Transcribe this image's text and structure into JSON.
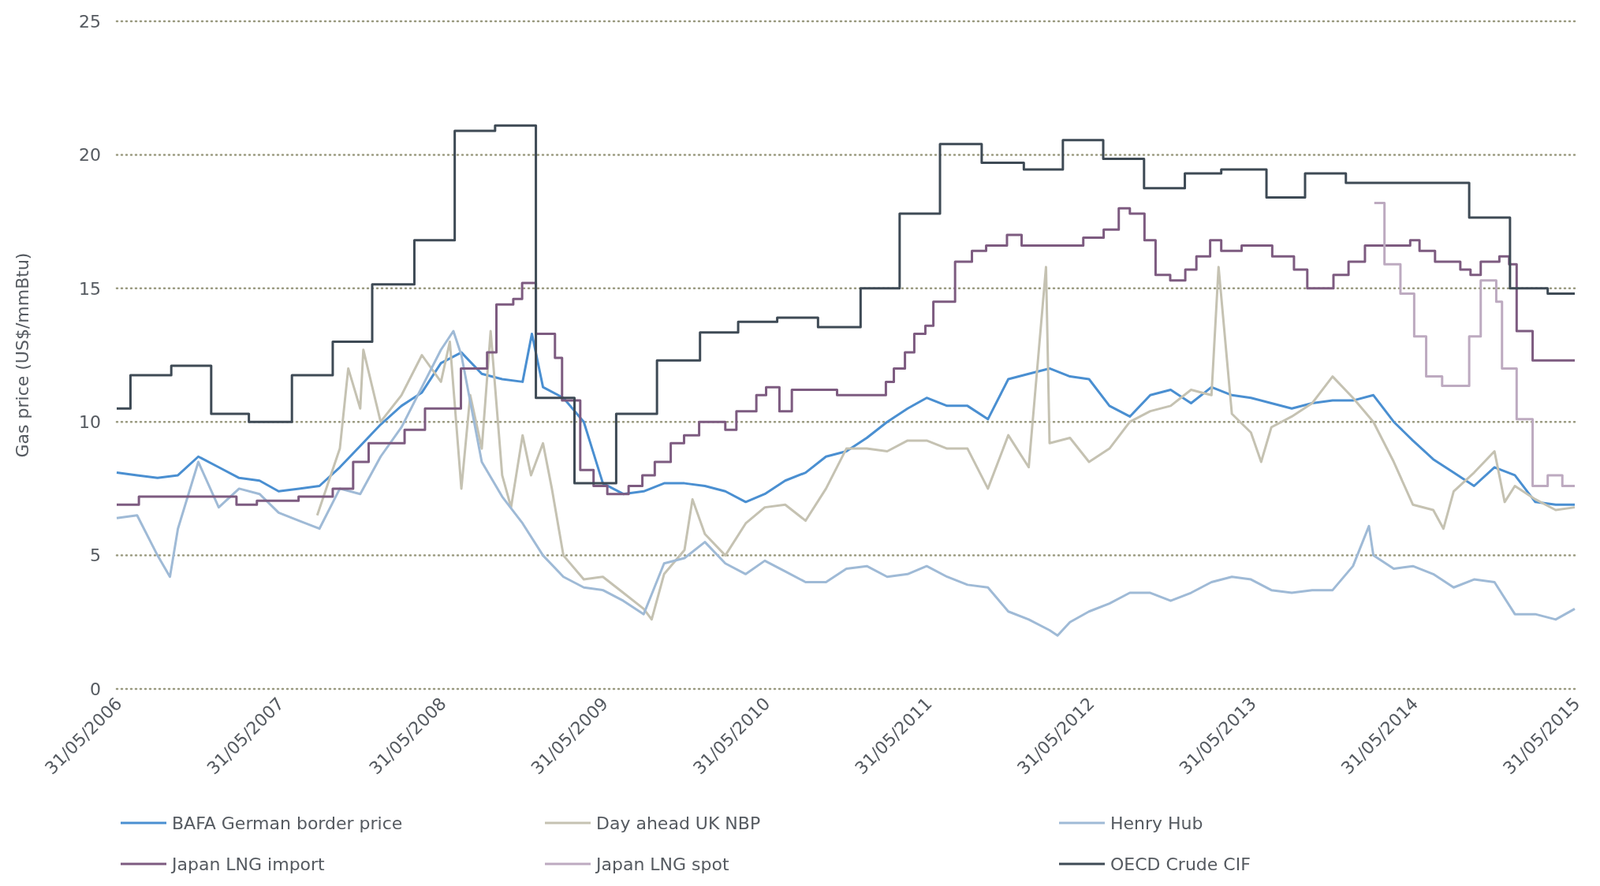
{
  "chart_data": {
    "type": "line",
    "ylabel": "Gas price (US$/mmBtu)",
    "xlim": [
      "2006-05-31",
      "2015-05-31"
    ],
    "xticks": [
      {
        "value": "2006-05-31",
        "label": "31/05/2006"
      },
      {
        "value": "2007-05-31",
        "label": "31/05/2007"
      },
      {
        "value": "2008-05-31",
        "label": "31/05/2008"
      },
      {
        "value": "2009-05-31",
        "label": "31/05/2009"
      },
      {
        "value": "2010-05-31",
        "label": "31/05/2010"
      },
      {
        "value": "2011-05-31",
        "label": "31/05/2011"
      },
      {
        "value": "2012-05-31",
        "label": "31/05/2012"
      },
      {
        "value": "2013-05-31",
        "label": "31/05/2013"
      },
      {
        "value": "2014-05-31",
        "label": "31/05/2014"
      },
      {
        "value": "2015-05-31",
        "label": "31/05/2015"
      }
    ],
    "ylim": [
      0,
      25
    ],
    "yticks": [
      0,
      5,
      10,
      15,
      20,
      25
    ],
    "grid": "y",
    "legend": "bottom",
    "line_style": "solid",
    "series": [
      {
        "name": "BAFA German border price",
        "color": "#4a8fd1",
        "type": "line",
        "x": [
          "2006-05-31",
          "2006-07-16",
          "2006-08-31",
          "2006-10-16",
          "2006-12-01",
          "2007-01-16",
          "2007-03-03",
          "2007-04-18",
          "2007-05-31",
          "2007-07-16",
          "2007-08-31",
          "2007-10-16",
          "2007-12-01",
          "2008-01-16",
          "2008-03-03",
          "2008-04-18",
          "2008-05-31",
          "2008-07-16",
          "2008-08-31",
          "2008-10-16",
          "2008-12-01",
          "2008-12-22",
          "2009-01-16",
          "2009-03-03",
          "2009-04-18",
          "2009-05-31",
          "2009-07-16",
          "2009-08-31",
          "2009-10-16",
          "2009-12-01",
          "2010-01-16",
          "2010-03-03",
          "2010-04-18",
          "2010-05-31",
          "2010-07-16",
          "2010-08-31",
          "2010-10-16",
          "2010-12-01",
          "2011-01-16",
          "2011-03-03",
          "2011-04-18",
          "2011-05-31",
          "2011-07-16",
          "2011-08-31",
          "2011-10-16",
          "2011-12-01",
          "2012-01-16",
          "2012-03-03",
          "2012-04-18",
          "2012-05-31",
          "2012-07-16",
          "2012-08-31",
          "2012-10-16",
          "2012-12-01",
          "2013-01-16",
          "2013-03-03",
          "2013-04-18",
          "2013-05-31",
          "2013-07-16",
          "2013-08-31",
          "2013-10-16",
          "2013-12-01",
          "2014-01-16",
          "2014-03-03",
          "2014-04-18",
          "2014-05-31",
          "2014-07-16",
          "2014-08-31",
          "2014-10-16",
          "2014-12-01",
          "2015-01-16",
          "2015-03-03",
          "2015-04-18",
          "2015-05-31"
        ],
        "values": [
          8.1,
          8.0,
          7.9,
          8.0,
          8.7,
          8.3,
          7.9,
          7.8,
          7.4,
          7.5,
          7.6,
          8.3,
          9.1,
          9.9,
          10.6,
          11.1,
          12.2,
          12.6,
          11.8,
          11.6,
          11.5,
          13.3,
          11.3,
          10.9,
          10.0,
          7.7,
          7.3,
          7.4,
          7.7,
          7.7,
          7.6,
          7.4,
          7.0,
          7.3,
          7.8,
          8.1,
          8.7,
          8.9,
          9.4,
          10.0,
          10.5,
          10.9,
          10.6,
          10.6,
          10.1,
          11.6,
          11.8,
          12.0,
          11.7,
          11.6,
          10.6,
          10.2,
          11.0,
          11.2,
          10.7,
          11.3,
          11.0,
          10.9,
          10.7,
          10.5,
          10.7,
          10.8,
          10.8,
          11.0,
          10.0,
          9.3,
          8.6,
          8.1,
          7.6,
          8.3,
          8.0,
          7.0,
          6.9,
          6.9
        ]
      },
      {
        "name": "Day ahead UK NBP",
        "color": "#c5c2b2",
        "type": "line",
        "x": [
          "2007-08-26",
          "2007-10-16",
          "2007-11-04",
          "2007-12-01",
          "2007-12-08",
          "2008-01-16",
          "2008-03-03",
          "2008-04-18",
          "2008-05-31",
          "2008-06-20",
          "2008-07-16",
          "2008-08-05",
          "2008-08-31",
          "2008-09-20",
          "2008-10-16",
          "2008-11-05",
          "2008-12-01",
          "2008-12-20",
          "2009-01-16",
          "2009-02-05",
          "2009-03-03",
          "2009-04-18",
          "2009-05-31",
          "2009-07-16",
          "2009-08-31",
          "2009-09-18",
          "2009-10-16",
          "2009-12-01",
          "2009-12-19",
          "2010-01-16",
          "2010-03-03",
          "2010-04-18",
          "2010-05-31",
          "2010-07-16",
          "2010-08-31",
          "2010-10-16",
          "2010-12-01",
          "2011-01-16",
          "2011-03-03",
          "2011-04-18",
          "2011-05-31",
          "2011-07-16",
          "2011-08-31",
          "2011-10-16",
          "2011-12-01",
          "2012-01-16",
          "2012-02-24",
          "2012-03-03",
          "2012-04-18",
          "2012-05-31",
          "2012-07-16",
          "2012-08-31",
          "2012-10-16",
          "2012-12-01",
          "2013-01-16",
          "2013-03-03",
          "2013-03-19",
          "2013-04-18",
          "2013-05-31",
          "2013-06-23",
          "2013-07-16",
          "2013-08-31",
          "2013-10-16",
          "2013-12-01",
          "2014-01-16",
          "2014-03-03",
          "2014-04-18",
          "2014-05-31",
          "2014-07-16",
          "2014-08-08",
          "2014-08-31",
          "2014-10-16",
          "2014-12-01",
          "2014-12-24",
          "2015-01-16",
          "2015-03-03",
          "2015-04-18",
          "2015-05-31"
        ],
        "values": [
          6.5,
          9.0,
          12.0,
          10.5,
          12.7,
          10.0,
          11.0,
          12.5,
          11.5,
          13.0,
          7.5,
          11.0,
          9.0,
          13.4,
          8.0,
          6.8,
          9.5,
          8.0,
          9.2,
          7.5,
          5.0,
          4.1,
          4.2,
          3.6,
          3.0,
          2.6,
          4.3,
          5.2,
          7.1,
          5.8,
          5.0,
          6.2,
          6.8,
          6.9,
          6.3,
          7.5,
          9.0,
          9.0,
          8.9,
          9.3,
          9.3,
          9.0,
          9.0,
          7.5,
          9.5,
          8.3,
          15.8,
          9.2,
          9.4,
          8.5,
          9.0,
          10.0,
          10.4,
          10.6,
          11.2,
          11.0,
          15.8,
          10.3,
          9.6,
          8.5,
          9.8,
          10.2,
          10.7,
          11.7,
          10.9,
          10.0,
          8.5,
          6.9,
          6.7,
          6.0,
          7.4,
          8.1,
          8.9,
          7.0,
          7.6,
          7.1,
          6.7,
          6.8
        ]
      },
      {
        "name": "Henry Hub",
        "color": "#9fbad6",
        "type": "line",
        "x": [
          "2006-05-31",
          "2006-07-16",
          "2006-08-31",
          "2006-09-28",
          "2006-10-16",
          "2006-12-01",
          "2007-01-16",
          "2007-03-03",
          "2007-04-18",
          "2007-05-31",
          "2007-07-16",
          "2007-08-31",
          "2007-10-16",
          "2007-12-01",
          "2008-01-16",
          "2008-03-03",
          "2008-04-18",
          "2008-05-31",
          "2008-06-28",
          "2008-07-16",
          "2008-08-31",
          "2008-10-16",
          "2008-12-01",
          "2009-01-16",
          "2009-03-03",
          "2009-04-18",
          "2009-05-31",
          "2009-07-16",
          "2009-08-31",
          "2009-10-16",
          "2009-12-01",
          "2010-01-16",
          "2010-03-03",
          "2010-04-18",
          "2010-05-31",
          "2010-07-16",
          "2010-08-31",
          "2010-10-16",
          "2010-12-01",
          "2011-01-16",
          "2011-03-03",
          "2011-04-18",
          "2011-05-31",
          "2011-07-16",
          "2011-08-31",
          "2011-10-16",
          "2011-12-01",
          "2012-01-16",
          "2012-03-03",
          "2012-03-21",
          "2012-04-18",
          "2012-05-31",
          "2012-07-16",
          "2012-08-31",
          "2012-10-16",
          "2012-12-01",
          "2013-01-16",
          "2013-03-03",
          "2013-04-18",
          "2013-05-31",
          "2013-07-16",
          "2013-08-31",
          "2013-10-16",
          "2013-12-01",
          "2014-01-16",
          "2014-02-21",
          "2014-03-03",
          "2014-04-18",
          "2014-05-31",
          "2014-07-16",
          "2014-08-31",
          "2014-10-16",
          "2014-12-01",
          "2015-01-16",
          "2015-03-03",
          "2015-04-18",
          "2015-05-31"
        ],
        "values": [
          6.4,
          6.5,
          5.0,
          4.2,
          6.0,
          8.5,
          6.8,
          7.5,
          7.3,
          6.6,
          6.3,
          6.0,
          7.5,
          7.3,
          8.7,
          9.8,
          11.3,
          12.7,
          13.4,
          12.5,
          8.5,
          7.2,
          6.2,
          5.0,
          4.2,
          3.8,
          3.7,
          3.3,
          2.8,
          4.7,
          4.9,
          5.5,
          4.7,
          4.3,
          4.8,
          4.4,
          4.0,
          4.0,
          4.5,
          4.6,
          4.2,
          4.3,
          4.6,
          4.2,
          3.9,
          3.8,
          2.9,
          2.6,
          2.2,
          2.0,
          2.5,
          2.9,
          3.2,
          3.6,
          3.6,
          3.3,
          3.6,
          4.0,
          4.2,
          4.1,
          3.7,
          3.6,
          3.7,
          3.7,
          4.6,
          6.1,
          5.0,
          4.5,
          4.6,
          4.3,
          3.8,
          4.1,
          4.0,
          2.8,
          2.8,
          2.6,
          3.0
        ]
      },
      {
        "name": "Japan LNG import",
        "color": "#7d5b80",
        "type": "step",
        "x": [
          "2006-05-31",
          "2006-07-20",
          "2007-02-25",
          "2007-04-12",
          "2007-07-15",
          "2007-09-30",
          "2007-11-15",
          "2007-12-20",
          "2008-03-10",
          "2008-04-25",
          "2008-07-15",
          "2008-09-12",
          "2008-10-03",
          "2008-11-10",
          "2008-11-30",
          "2008-12-31",
          "2009-02-12",
          "2009-02-28",
          "2009-04-10",
          "2009-05-10",
          "2009-06-10",
          "2009-07-28",
          "2009-08-28",
          "2009-09-25",
          "2009-10-31",
          "2009-11-30",
          "2010-01-03",
          "2010-03-03",
          "2010-03-28",
          "2010-05-12",
          "2010-06-03",
          "2010-07-03",
          "2010-07-31",
          "2010-11-10",
          "2011-02-28",
          "2011-03-18",
          "2011-04-12",
          "2011-05-03",
          "2011-05-28",
          "2011-06-15",
          "2011-08-03",
          "2011-09-10",
          "2011-10-12",
          "2011-11-28",
          "2011-12-31",
          "2012-05-18",
          "2012-07-03",
          "2012-08-06",
          "2012-08-31",
          "2012-10-03",
          "2012-10-28",
          "2012-11-30",
          "2013-01-03",
          "2013-01-28",
          "2013-02-28",
          "2013-03-25",
          "2013-05-10",
          "2013-07-18",
          "2013-09-05",
          "2013-10-05",
          "2013-12-03",
          "2014-01-06",
          "2014-02-12",
          "2014-05-25",
          "2014-06-15",
          "2014-07-20",
          "2014-09-15",
          "2014-10-08",
          "2014-10-31",
          "2014-12-12",
          "2015-01-03",
          "2015-01-20",
          "2015-02-25",
          "2015-05-31"
        ],
        "values": [
          6.9,
          7.2,
          6.9,
          7.05,
          7.2,
          7.5,
          8.5,
          9.2,
          9.7,
          10.5,
          12.0,
          12.6,
          14.4,
          14.6,
          15.2,
          13.3,
          12.4,
          10.8,
          8.2,
          7.6,
          7.3,
          7.6,
          8.0,
          8.5,
          9.2,
          9.5,
          10.0,
          9.7,
          10.4,
          11.0,
          11.3,
          10.4,
          11.2,
          11.0,
          11.5,
          12.0,
          12.6,
          13.3,
          13.6,
          14.5,
          16.0,
          16.4,
          16.6,
          17.0,
          16.6,
          16.9,
          17.2,
          18.0,
          17.8,
          16.8,
          15.5,
          15.3,
          15.7,
          16.2,
          16.8,
          16.4,
          16.6,
          16.2,
          15.7,
          15.0,
          15.5,
          16.0,
          16.6,
          16.8,
          16.4,
          16.0,
          15.7,
          15.5,
          16.0,
          16.2,
          15.9,
          13.4,
          12.3,
          12.3
        ]
      },
      {
        "name": "Japan LNG spot",
        "color": "#bdaac0",
        "type": "step",
        "x": [
          "2014-03-05",
          "2014-03-28",
          "2014-05-03",
          "2014-06-03",
          "2014-06-30",
          "2014-08-05",
          "2014-10-05",
          "2014-10-31",
          "2014-12-05",
          "2014-12-18",
          "2015-01-20",
          "2015-02-25",
          "2015-03-31",
          "2015-05-03",
          "2015-05-31"
        ],
        "values": [
          18.2,
          15.9,
          14.8,
          13.2,
          11.7,
          11.35,
          13.2,
          15.3,
          14.5,
          12.0,
          10.1,
          7.6,
          8.0,
          7.6,
          7.6
        ]
      },
      {
        "name": "OECD Crude CIF",
        "color": "#3e4a55",
        "type": "step",
        "x": [
          "2006-05-31",
          "2006-07-01",
          "2006-10-01",
          "2006-12-30",
          "2007-03-25",
          "2007-06-30",
          "2007-09-30",
          "2007-12-28",
          "2008-04-01",
          "2008-07-01",
          "2008-09-30",
          "2008-12-31",
          "2009-03-28",
          "2009-06-30",
          "2009-09-30",
          "2010-01-05",
          "2010-04-01",
          "2010-06-28",
          "2010-09-28",
          "2011-01-02",
          "2011-03-31",
          "2011-06-30",
          "2011-10-02",
          "2012-01-05",
          "2012-04-02",
          "2012-07-02",
          "2012-10-02",
          "2013-01-02",
          "2013-03-25",
          "2013-07-05",
          "2013-09-30",
          "2013-12-31",
          "2014-10-05",
          "2015-01-05",
          "2015-03-31",
          "2015-05-31"
        ],
        "values": [
          10.5,
          11.75,
          12.1,
          10.3,
          10.0,
          11.75,
          13.0,
          15.15,
          16.8,
          20.9,
          21.1,
          10.9,
          7.7,
          10.3,
          12.3,
          13.35,
          13.75,
          13.9,
          13.55,
          15.0,
          17.8,
          20.4,
          19.7,
          19.45,
          20.55,
          19.85,
          18.75,
          19.3,
          19.45,
          18.4,
          19.3,
          18.95,
          17.65,
          15.0,
          14.8,
          14.8
        ]
      }
    ]
  }
}
